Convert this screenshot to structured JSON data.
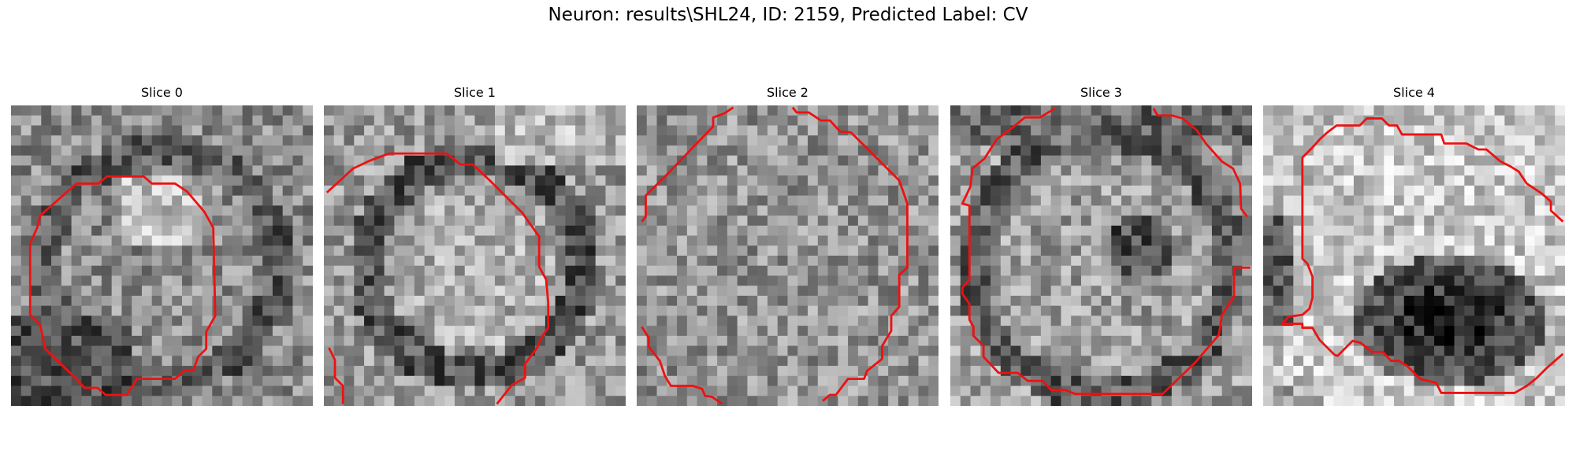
{
  "figure": {
    "suptitle": "Neuron: results\\SHL24, ID: 2159, Predicted Label: CV",
    "contour_color": "#ee1111",
    "slices": [
      {
        "title": "Slice 0",
        "seed": 11,
        "pattern": "ring"
      },
      {
        "title": "Slice 1",
        "seed": 23,
        "pattern": "ring_dark"
      },
      {
        "title": "Slice 2",
        "seed": 37,
        "pattern": "uniform"
      },
      {
        "title": "Slice 3",
        "seed": 41,
        "pattern": "ring_dark_spot"
      },
      {
        "title": "Slice 4",
        "seed": 53,
        "pattern": "dark_blob"
      }
    ]
  }
}
